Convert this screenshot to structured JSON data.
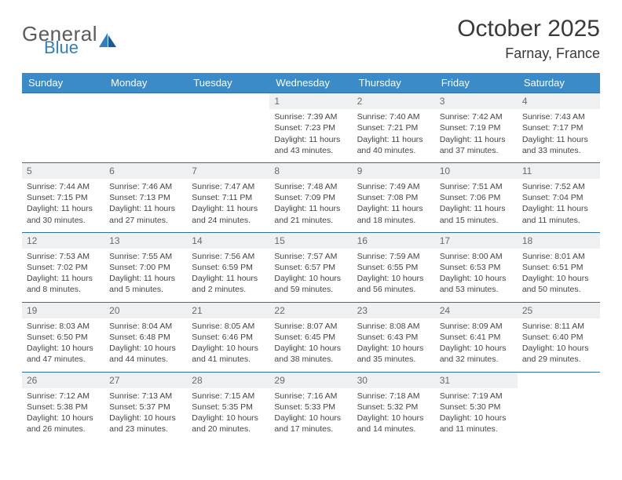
{
  "brand": {
    "word1": "General",
    "word2": "Blue"
  },
  "title": "October 2025",
  "location": "Farnay, France",
  "colors": {
    "header_bg": "#3b8bc9",
    "header_text": "#ffffff",
    "row_border": "#2f6fa8",
    "daynum_bg": "#eef0f1",
    "daynum_text": "#6a6a6a",
    "body_text": "#444444",
    "brand_gray": "#5b5b5b",
    "brand_blue": "#2f7fc1"
  },
  "weekdays": [
    "Sunday",
    "Monday",
    "Tuesday",
    "Wednesday",
    "Thursday",
    "Friday",
    "Saturday"
  ],
  "layout": {
    "columns": 7,
    "rows": 5,
    "first_weekday_index": 3,
    "days_in_month": 31
  },
  "days": {
    "1": {
      "sunrise": "7:39 AM",
      "sunset": "7:23 PM",
      "daylight": "11 hours and 43 minutes."
    },
    "2": {
      "sunrise": "7:40 AM",
      "sunset": "7:21 PM",
      "daylight": "11 hours and 40 minutes."
    },
    "3": {
      "sunrise": "7:42 AM",
      "sunset": "7:19 PM",
      "daylight": "11 hours and 37 minutes."
    },
    "4": {
      "sunrise": "7:43 AM",
      "sunset": "7:17 PM",
      "daylight": "11 hours and 33 minutes."
    },
    "5": {
      "sunrise": "7:44 AM",
      "sunset": "7:15 PM",
      "daylight": "11 hours and 30 minutes."
    },
    "6": {
      "sunrise": "7:46 AM",
      "sunset": "7:13 PM",
      "daylight": "11 hours and 27 minutes."
    },
    "7": {
      "sunrise": "7:47 AM",
      "sunset": "7:11 PM",
      "daylight": "11 hours and 24 minutes."
    },
    "8": {
      "sunrise": "7:48 AM",
      "sunset": "7:09 PM",
      "daylight": "11 hours and 21 minutes."
    },
    "9": {
      "sunrise": "7:49 AM",
      "sunset": "7:08 PM",
      "daylight": "11 hours and 18 minutes."
    },
    "10": {
      "sunrise": "7:51 AM",
      "sunset": "7:06 PM",
      "daylight": "11 hours and 15 minutes."
    },
    "11": {
      "sunrise": "7:52 AM",
      "sunset": "7:04 PM",
      "daylight": "11 hours and 11 minutes."
    },
    "12": {
      "sunrise": "7:53 AM",
      "sunset": "7:02 PM",
      "daylight": "11 hours and 8 minutes."
    },
    "13": {
      "sunrise": "7:55 AM",
      "sunset": "7:00 PM",
      "daylight": "11 hours and 5 minutes."
    },
    "14": {
      "sunrise": "7:56 AM",
      "sunset": "6:59 PM",
      "daylight": "11 hours and 2 minutes."
    },
    "15": {
      "sunrise": "7:57 AM",
      "sunset": "6:57 PM",
      "daylight": "10 hours and 59 minutes."
    },
    "16": {
      "sunrise": "7:59 AM",
      "sunset": "6:55 PM",
      "daylight": "10 hours and 56 minutes."
    },
    "17": {
      "sunrise": "8:00 AM",
      "sunset": "6:53 PM",
      "daylight": "10 hours and 53 minutes."
    },
    "18": {
      "sunrise": "8:01 AM",
      "sunset": "6:51 PM",
      "daylight": "10 hours and 50 minutes."
    },
    "19": {
      "sunrise": "8:03 AM",
      "sunset": "6:50 PM",
      "daylight": "10 hours and 47 minutes."
    },
    "20": {
      "sunrise": "8:04 AM",
      "sunset": "6:48 PM",
      "daylight": "10 hours and 44 minutes."
    },
    "21": {
      "sunrise": "8:05 AM",
      "sunset": "6:46 PM",
      "daylight": "10 hours and 41 minutes."
    },
    "22": {
      "sunrise": "8:07 AM",
      "sunset": "6:45 PM",
      "daylight": "10 hours and 38 minutes."
    },
    "23": {
      "sunrise": "8:08 AM",
      "sunset": "6:43 PM",
      "daylight": "10 hours and 35 minutes."
    },
    "24": {
      "sunrise": "8:09 AM",
      "sunset": "6:41 PM",
      "daylight": "10 hours and 32 minutes."
    },
    "25": {
      "sunrise": "8:11 AM",
      "sunset": "6:40 PM",
      "daylight": "10 hours and 29 minutes."
    },
    "26": {
      "sunrise": "7:12 AM",
      "sunset": "5:38 PM",
      "daylight": "10 hours and 26 minutes."
    },
    "27": {
      "sunrise": "7:13 AM",
      "sunset": "5:37 PM",
      "daylight": "10 hours and 23 minutes."
    },
    "28": {
      "sunrise": "7:15 AM",
      "sunset": "5:35 PM",
      "daylight": "10 hours and 20 minutes."
    },
    "29": {
      "sunrise": "7:16 AM",
      "sunset": "5:33 PM",
      "daylight": "10 hours and 17 minutes."
    },
    "30": {
      "sunrise": "7:18 AM",
      "sunset": "5:32 PM",
      "daylight": "10 hours and 14 minutes."
    },
    "31": {
      "sunrise": "7:19 AM",
      "sunset": "5:30 PM",
      "daylight": "10 hours and 11 minutes."
    }
  },
  "labels": {
    "sunrise": "Sunrise:",
    "sunset": "Sunset:",
    "daylight": "Daylight:"
  }
}
